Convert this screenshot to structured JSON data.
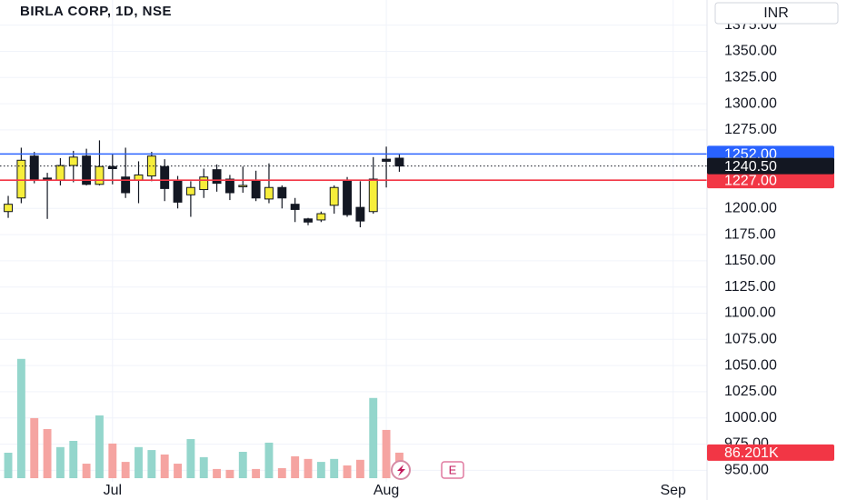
{
  "chart_data": {
    "type": "candlestick",
    "title": "BIRLA CORP, 1D, NSE",
    "currency": "INR",
    "events_label": "E",
    "x": [
      0,
      1,
      2,
      3,
      4,
      5,
      6,
      7,
      8,
      9,
      10,
      11,
      12,
      13,
      14,
      15,
      16,
      17,
      18,
      19,
      20,
      21,
      22,
      23,
      24,
      25,
      26,
      27,
      28,
      29,
      30
    ],
    "xlim": [
      -0.63,
      53.6
    ],
    "xticks": [
      {
        "value": 8,
        "label": "Jul"
      },
      {
        "value": 29,
        "label": "Aug"
      },
      {
        "value": 51,
        "label": "Sep"
      }
    ],
    "open": [
      1197,
      1210,
      1250,
      1229,
      1227,
      1241,
      1250,
      1223,
      1240,
      1230,
      1227,
      1231,
      1240,
      1226,
      1213,
      1218,
      1237,
      1228,
      1221,
      1226,
      1209,
      1220,
      1204,
      1190,
      1189,
      1203,
      1227,
      1201,
      1197,
      1247,
      1248
    ],
    "high": [
      1212,
      1258,
      1254,
      1234,
      1248,
      1255,
      1257,
      1265,
      1252,
      1258,
      1245,
      1254,
      1247,
      1231,
      1226,
      1238,
      1242,
      1232,
      1240,
      1236,
      1243,
      1222,
      1210,
      1191,
      1197,
      1222,
      1230,
      1226,
      1249,
      1259,
      1252
    ],
    "low": [
      1191,
      1205,
      1224,
      1190,
      1222,
      1225,
      1222,
      1222,
      1223,
      1210,
      1205,
      1226,
      1207,
      1200,
      1192,
      1210,
      1216,
      1208,
      1215,
      1207,
      1205,
      1200,
      1187,
      1184,
      1187,
      1195,
      1192,
      1182,
      1195,
      1220,
      1235
    ],
    "close": [
      1204,
      1246,
      1228,
      1227,
      1241,
      1249,
      1223,
      1240,
      1238,
      1215,
      1232,
      1250,
      1219,
      1206,
      1220,
      1230,
      1224,
      1215,
      1222,
      1210,
      1220,
      1210,
      1199,
      1187,
      1195,
      1220,
      1194,
      1188,
      1228,
      1245,
      1240.5
    ],
    "volume": [
      86000,
      403000,
      203000,
      166000,
      105000,
      126000,
      49000,
      212000,
      117000,
      55000,
      105000,
      95000,
      80000,
      49000,
      132000,
      71000,
      31000,
      28000,
      89000,
      31000,
      120000,
      34000,
      74000,
      65000,
      55000,
      65000,
      43000,
      62000,
      271000,
      163000,
      86201
    ],
    "volume_label": "86.201K",
    "volume_lim": [
      0,
      430000
    ],
    "up_color": "#f7ee3b",
    "down_color": "#131722",
    "volume_up_color": "#94d6cc",
    "volume_down_color": "#f5a4a1",
    "ylim": [
      939,
      1399
    ],
    "yticks": [
      {
        "value": 950,
        "label": "950.00"
      },
      {
        "value": 975,
        "label": "975.00"
      },
      {
        "value": 1000,
        "label": "1000.00"
      },
      {
        "value": 1025,
        "label": "1025.00"
      },
      {
        "value": 1050,
        "label": "1050.00"
      },
      {
        "value": 1075,
        "label": "1075.00"
      },
      {
        "value": 1100,
        "label": "1100.00"
      },
      {
        "value": 1125,
        "label": "1125.00"
      },
      {
        "value": 1150,
        "label": "1150.00"
      },
      {
        "value": 1175,
        "label": "1175.00"
      },
      {
        "value": 1200,
        "label": "1200.00"
      },
      {
        "value": 1275,
        "label": "1275.00"
      },
      {
        "value": 1300,
        "label": "1300.00"
      },
      {
        "value": 1325,
        "label": "1325.00"
      },
      {
        "value": 1350,
        "label": "1350.00"
      },
      {
        "value": 1375,
        "label": "1375.00"
      }
    ],
    "hlines": [
      {
        "value": 1252,
        "label": "1252.00",
        "color": "#2962ff",
        "style": "solid"
      },
      {
        "value": 1227,
        "label": "1227.00",
        "color": "#f23645",
        "style": "solid"
      },
      {
        "value": 1240.5,
        "label": "1240.50",
        "color": "#131722",
        "style": "dotted"
      }
    ],
    "grid": true
  }
}
